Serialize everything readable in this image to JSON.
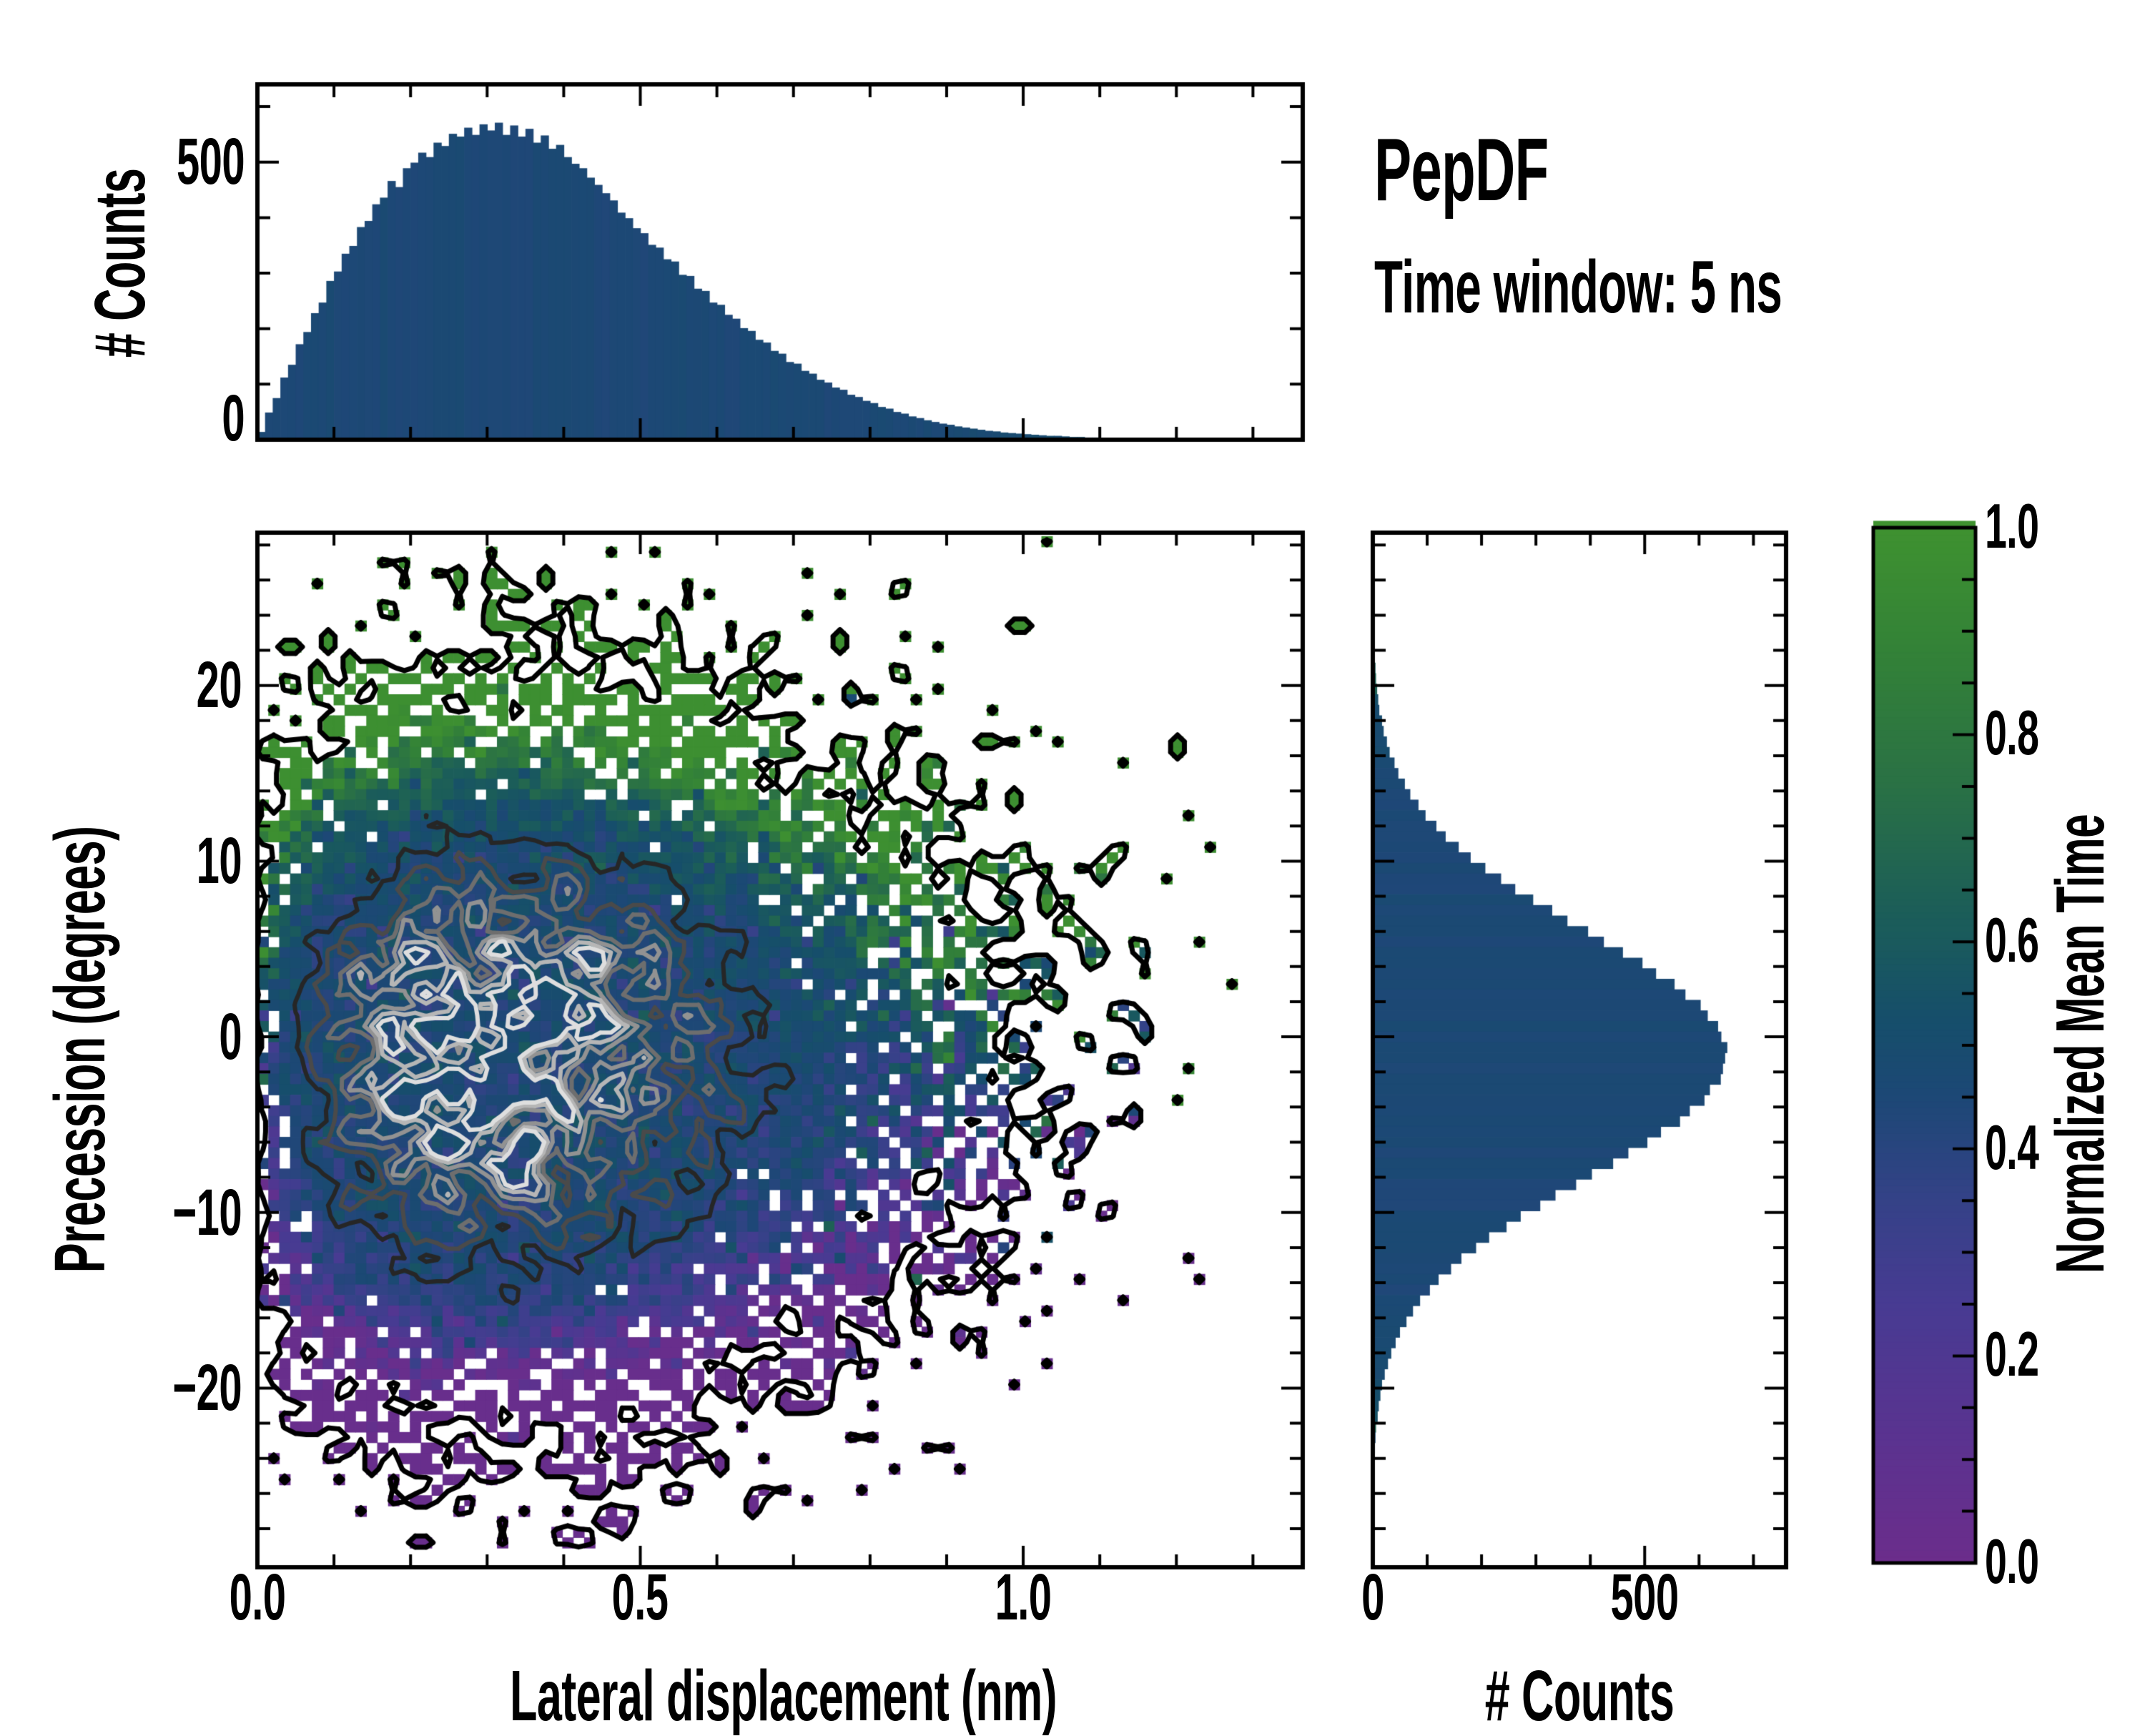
{
  "title": {
    "text": "PepDF"
  },
  "subtitle": {
    "text": "Time window: 5 ns"
  },
  "chart_data": [
    {
      "type": "bar",
      "name": "top_marginal_histogram",
      "ylabel": "# Counts",
      "y_tick_labels": [
        "500",
        "0"
      ],
      "y_ticks": [
        500,
        0
      ],
      "y_minor_ticks": [
        100,
        200,
        300,
        400,
        600
      ],
      "ylim": [
        0,
        640
      ],
      "bin_start": 0.0,
      "bin_width": 0.01,
      "values": [
        14,
        49,
        75,
        112,
        135,
        172,
        194,
        228,
        247,
        286,
        303,
        335,
        349,
        383,
        394,
        424,
        436,
        466,
        455,
        489,
        499,
        517,
        509,
        535,
        529,
        551,
        546,
        562,
        549,
        568,
        557,
        571,
        549,
        566,
        546,
        560,
        535,
        548,
        524,
        531,
        509,
        497,
        489,
        472,
        459,
        444,
        431,
        409,
        399,
        381,
        372,
        351,
        346,
        325,
        321,
        297,
        295,
        272,
        268,
        247,
        243,
        225,
        218,
        201,
        196,
        180,
        175,
        160,
        155,
        140,
        137,
        124,
        119,
        108,
        103,
        94,
        90,
        81,
        77,
        70,
        66,
        59,
        56,
        50,
        47,
        42,
        39,
        35,
        32,
        29,
        27,
        24,
        22,
        20,
        18,
        16,
        15,
        13,
        12,
        11,
        10,
        9,
        8,
        7,
        7,
        6,
        5,
        5,
        4,
        4,
        3,
        3,
        2,
        2,
        2,
        1,
        1,
        1,
        1,
        1,
        1,
        0,
        1,
        0,
        0,
        1,
        0,
        0,
        0,
        0,
        0,
        0,
        0,
        0,
        0,
        0
      ],
      "bar_value_base": 0.452
    },
    {
      "type": "heatmap",
      "name": "joint_2d_histogram",
      "xlabel": "Lateral displacement (nm)",
      "ylabel": "Precession (degrees)",
      "x_tick_labels": [
        "0.0",
        "0.5",
        "1.0"
      ],
      "x_ticks": [
        0,
        0.5,
        1.0
      ],
      "x_minor_ticks": [
        0.1,
        0.2,
        0.3,
        0.4,
        0.6,
        0.7,
        0.8,
        0.9,
        1.1,
        1.2,
        1.3
      ],
      "y_tick_labels": [
        "20",
        "10",
        "0",
        "−10",
        "−20"
      ],
      "y_ticks": [
        20,
        10,
        0,
        -10,
        -20
      ],
      "y_minor_ticks": [
        28,
        26,
        24,
        22,
        18,
        16,
        14,
        12,
        8,
        6,
        4,
        2,
        -2,
        -4,
        -6,
        -8,
        -12,
        -14,
        -16,
        -18,
        -22,
        -24,
        -26,
        -28
      ],
      "xlim": [
        0,
        1.365
      ],
      "ylim": [
        -30.2,
        28.7
      ],
      "nx": 96,
      "ny": 96,
      "dx": 0.01421875,
      "dy": 0.6,
      "y_top": 28.2,
      "seed": 7,
      "lambda_peak": 14,
      "sigma_r": 0.3,
      "r_exp": 0.9,
      "x_gauss_div": 0.2,
      "y_center": -1,
      "y_sigma": 8.6,
      "core_value_mean": 0.46,
      "core_value_sd": 0.055,
      "wide_value_sd": 0.3,
      "wide_bias_per_deg": 0.006,
      "blend_lambda": 1.6,
      "contour_levels": [
        5.0,
        6.8,
        8.6,
        10.2,
        11.6,
        12.8
      ],
      "contour_colors": [
        "#262626",
        "#4a4a4a",
        "#6e6e6e",
        "#929292",
        "#b6b6b6",
        "#dedede"
      ],
      "occupancy_contour_color": "#000000",
      "empty_bin_color": "#ffffff"
    },
    {
      "type": "bar",
      "name": "right_marginal_histogram",
      "xlabel": "# Counts",
      "x_tick_labels": [
        "0",
        "500"
      ],
      "x_ticks": [
        0,
        500
      ],
      "x_minor_ticks": [
        100,
        200,
        300,
        400,
        600,
        700
      ],
      "xlim": [
        0,
        760
      ],
      "bin_top": 28.5,
      "bin_width": 0.6,
      "values": [
        0,
        0,
        0,
        0,
        0,
        1,
        1,
        1,
        2,
        2,
        3,
        3,
        5,
        6,
        8,
        10,
        12,
        17,
        20,
        26,
        31,
        40,
        47,
        59,
        69,
        84,
        97,
        117,
        134,
        158,
        180,
        207,
        236,
        262,
        295,
        330,
        358,
        396,
        425,
        460,
        496,
        521,
        555,
        575,
        603,
        616,
        635,
        641,
        652,
        648,
        644,
        640,
        620,
        610,
        583,
        565,
        530,
        505,
        470,
        442,
        403,
        374,
        336,
        308,
        272,
        246,
        214,
        190,
        163,
        144,
        121,
        105,
        87,
        74,
        62,
        50,
        42,
        34,
        28,
        22,
        17,
        14,
        11,
        9,
        6,
        5,
        4,
        3,
        2,
        2,
        1,
        1,
        1,
        0,
        0,
        0
      ],
      "bar_value_base": 0.452
    },
    {
      "type": "colorbar",
      "name": "colorbar",
      "label": "Normalized Mean Time",
      "tick_labels": [
        "1.0",
        "0.8",
        "0.6",
        "0.4",
        "0.2",
        "0.0"
      ],
      "ticks": [
        1.0,
        0.8,
        0.6,
        0.4,
        0.2,
        0.0
      ],
      "minor_tick_step": 0.05,
      "range": [
        0.0,
        1.0
      ],
      "colormap": [
        [
          0.0,
          "#6b2d8b"
        ],
        [
          0.12,
          "#5a3390"
        ],
        [
          0.25,
          "#473b92"
        ],
        [
          0.35,
          "#344287"
        ],
        [
          0.45,
          "#1c4875"
        ],
        [
          0.52,
          "#164e6b"
        ],
        [
          0.62,
          "#1b5d59"
        ],
        [
          0.75,
          "#2a7145"
        ],
        [
          0.88,
          "#338237"
        ],
        [
          1.0,
          "#3f9230"
        ]
      ]
    }
  ]
}
